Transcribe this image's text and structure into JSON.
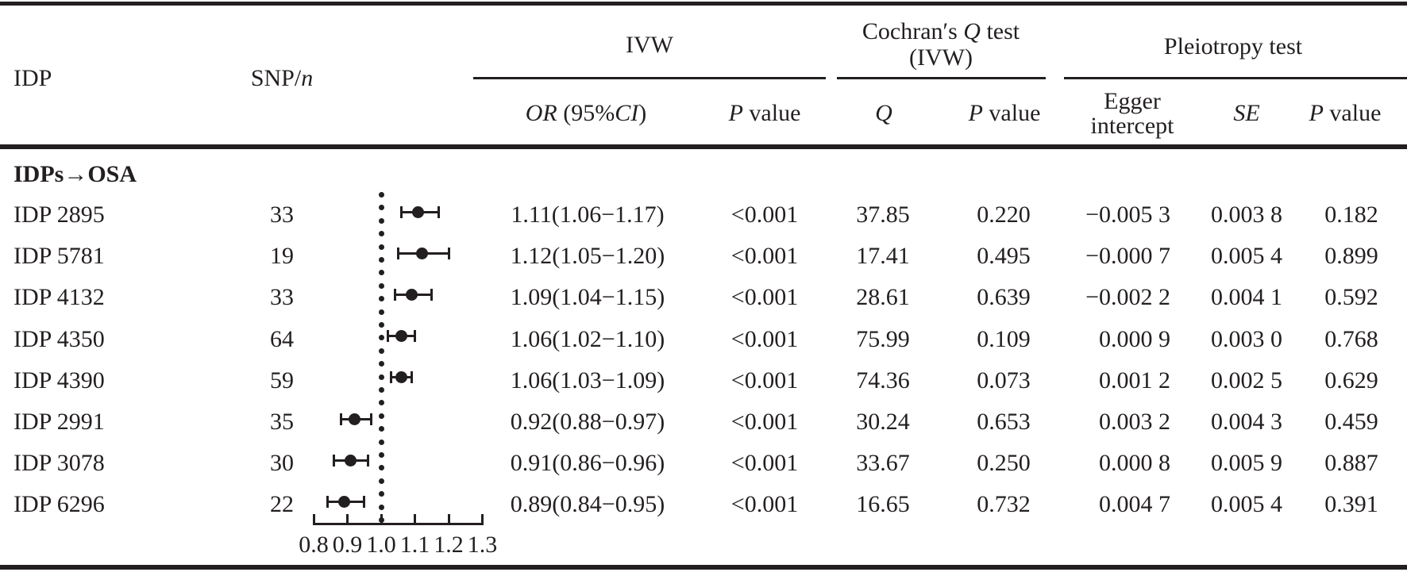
{
  "meta": {
    "background": "#ffffff",
    "ink": "#231f20"
  },
  "header": {
    "idp": "IDP",
    "snp": {
      "prefix": "SNP/",
      "italic": "n"
    },
    "ivw": "IVW",
    "cochran": {
      "pre": "Cochran′s ",
      "q": "Q",
      "post": " test",
      "line2": "(IVW)"
    },
    "pleiotropy": "Pleiotropy test",
    "or": {
      "i1": "OR",
      "mid": " (95%",
      "i2": "CI",
      "post": ")"
    },
    "p": {
      "italic": "P",
      "rest": " value"
    },
    "q": "Q",
    "se": "SE",
    "egger": {
      "line1": "Egger",
      "line2": "intercept"
    }
  },
  "section_label": "IDPs→OSA",
  "rows": [
    {
      "idp": "IDP 2895",
      "snp": "33",
      "or_ci": "1.11(1.06−1.17)",
      "p_ivw": "<0.001",
      "q": "37.85",
      "p_q": "0.220",
      "egger": "−0.005 3",
      "se": "0.003 8",
      "p_pleio": "0.182",
      "or": 1.11,
      "ci_low": 1.06,
      "ci_high": 1.17
    },
    {
      "idp": "IDP 5781",
      "snp": "19",
      "or_ci": "1.12(1.05−1.20)",
      "p_ivw": "<0.001",
      "q": "17.41",
      "p_q": "0.495",
      "egger": "−0.000 7",
      "se": "0.005 4",
      "p_pleio": "0.899",
      "or": 1.12,
      "ci_low": 1.05,
      "ci_high": 1.2
    },
    {
      "idp": "IDP 4132",
      "snp": "33",
      "or_ci": "1.09(1.04−1.15)",
      "p_ivw": "<0.001",
      "q": "28.61",
      "p_q": "0.639",
      "egger": "−0.002 2",
      "se": "0.004 1",
      "p_pleio": "0.592",
      "or": 1.09,
      "ci_low": 1.04,
      "ci_high": 1.15
    },
    {
      "idp": "IDP 4350",
      "snp": "64",
      "or_ci": "1.06(1.02−1.10)",
      "p_ivw": "<0.001",
      "q": "75.99",
      "p_q": "0.109",
      "egger": "0.000 9",
      "se": "0.003 0",
      "p_pleio": "0.768",
      "or": 1.06,
      "ci_low": 1.02,
      "ci_high": 1.1
    },
    {
      "idp": "IDP 4390",
      "snp": "59",
      "or_ci": "1.06(1.03−1.09)",
      "p_ivw": "<0.001",
      "q": "74.36",
      "p_q": "0.073",
      "egger": "0.001 2",
      "se": "0.002 5",
      "p_pleio": "0.629",
      "or": 1.06,
      "ci_low": 1.03,
      "ci_high": 1.09
    },
    {
      "idp": "IDP 2991",
      "snp": "35",
      "or_ci": "0.92(0.88−0.97)",
      "p_ivw": "<0.001",
      "q": "30.24",
      "p_q": "0.653",
      "egger": "0.003 2",
      "se": "0.004 3",
      "p_pleio": "0.459",
      "or": 0.92,
      "ci_low": 0.88,
      "ci_high": 0.97
    },
    {
      "idp": "IDP 3078",
      "snp": "30",
      "or_ci": "0.91(0.86−0.96)",
      "p_ivw": "<0.001",
      "q": "33.67",
      "p_q": "0.250",
      "egger": "0.000 8",
      "se": "0.005 9",
      "p_pleio": "0.887",
      "or": 0.91,
      "ci_low": 0.86,
      "ci_high": 0.96
    },
    {
      "idp": "IDP 6296",
      "snp": "22",
      "or_ci": "0.89(0.84−0.95)",
      "p_ivw": "<0.001",
      "q": "16.65",
      "p_q": "0.732",
      "egger": "0.004 7",
      "se": "0.005 4",
      "p_pleio": "0.391",
      "or": 0.89,
      "ci_low": 0.84,
      "ci_high": 0.95
    }
  ],
  "forest": {
    "axis_min": 0.8,
    "axis_max": 1.3,
    "reference": 1.0,
    "ticks": [
      {
        "value": 0.8,
        "label": "0.8"
      },
      {
        "value": 0.9,
        "label": "0.9"
      },
      {
        "value": 1.0,
        "label": "1.0"
      },
      {
        "value": 1.1,
        "label": "1.1"
      },
      {
        "value": 1.2,
        "label": "1.2"
      },
      {
        "value": 1.3,
        "label": "1.3"
      }
    ]
  },
  "chart_data": {
    "type": "scatter",
    "subtype": "forest-plot",
    "title": "",
    "xlabel": "",
    "categories": [
      "IDP 2895",
      "IDP 5781",
      "IDP 4132",
      "IDP 4350",
      "IDP 4390",
      "IDP 2991",
      "IDP 3078",
      "IDP 6296"
    ],
    "series": [
      {
        "name": "OR",
        "values": [
          1.11,
          1.12,
          1.09,
          1.06,
          1.06,
          0.92,
          0.91,
          0.89
        ]
      },
      {
        "name": "CI_low",
        "values": [
          1.06,
          1.05,
          1.04,
          1.02,
          1.03,
          0.88,
          0.86,
          0.84
        ]
      },
      {
        "name": "CI_high",
        "values": [
          1.17,
          1.2,
          1.15,
          1.1,
          1.09,
          0.97,
          0.96,
          0.95
        ]
      }
    ],
    "xlim": [
      0.8,
      1.3
    ],
    "x_ticks": [
      0.8,
      0.9,
      1.0,
      1.1,
      1.2,
      1.3
    ],
    "reference_line": 1.0,
    "grid": false,
    "legend": false,
    "marker": "filled-circle-with-error-bars"
  }
}
